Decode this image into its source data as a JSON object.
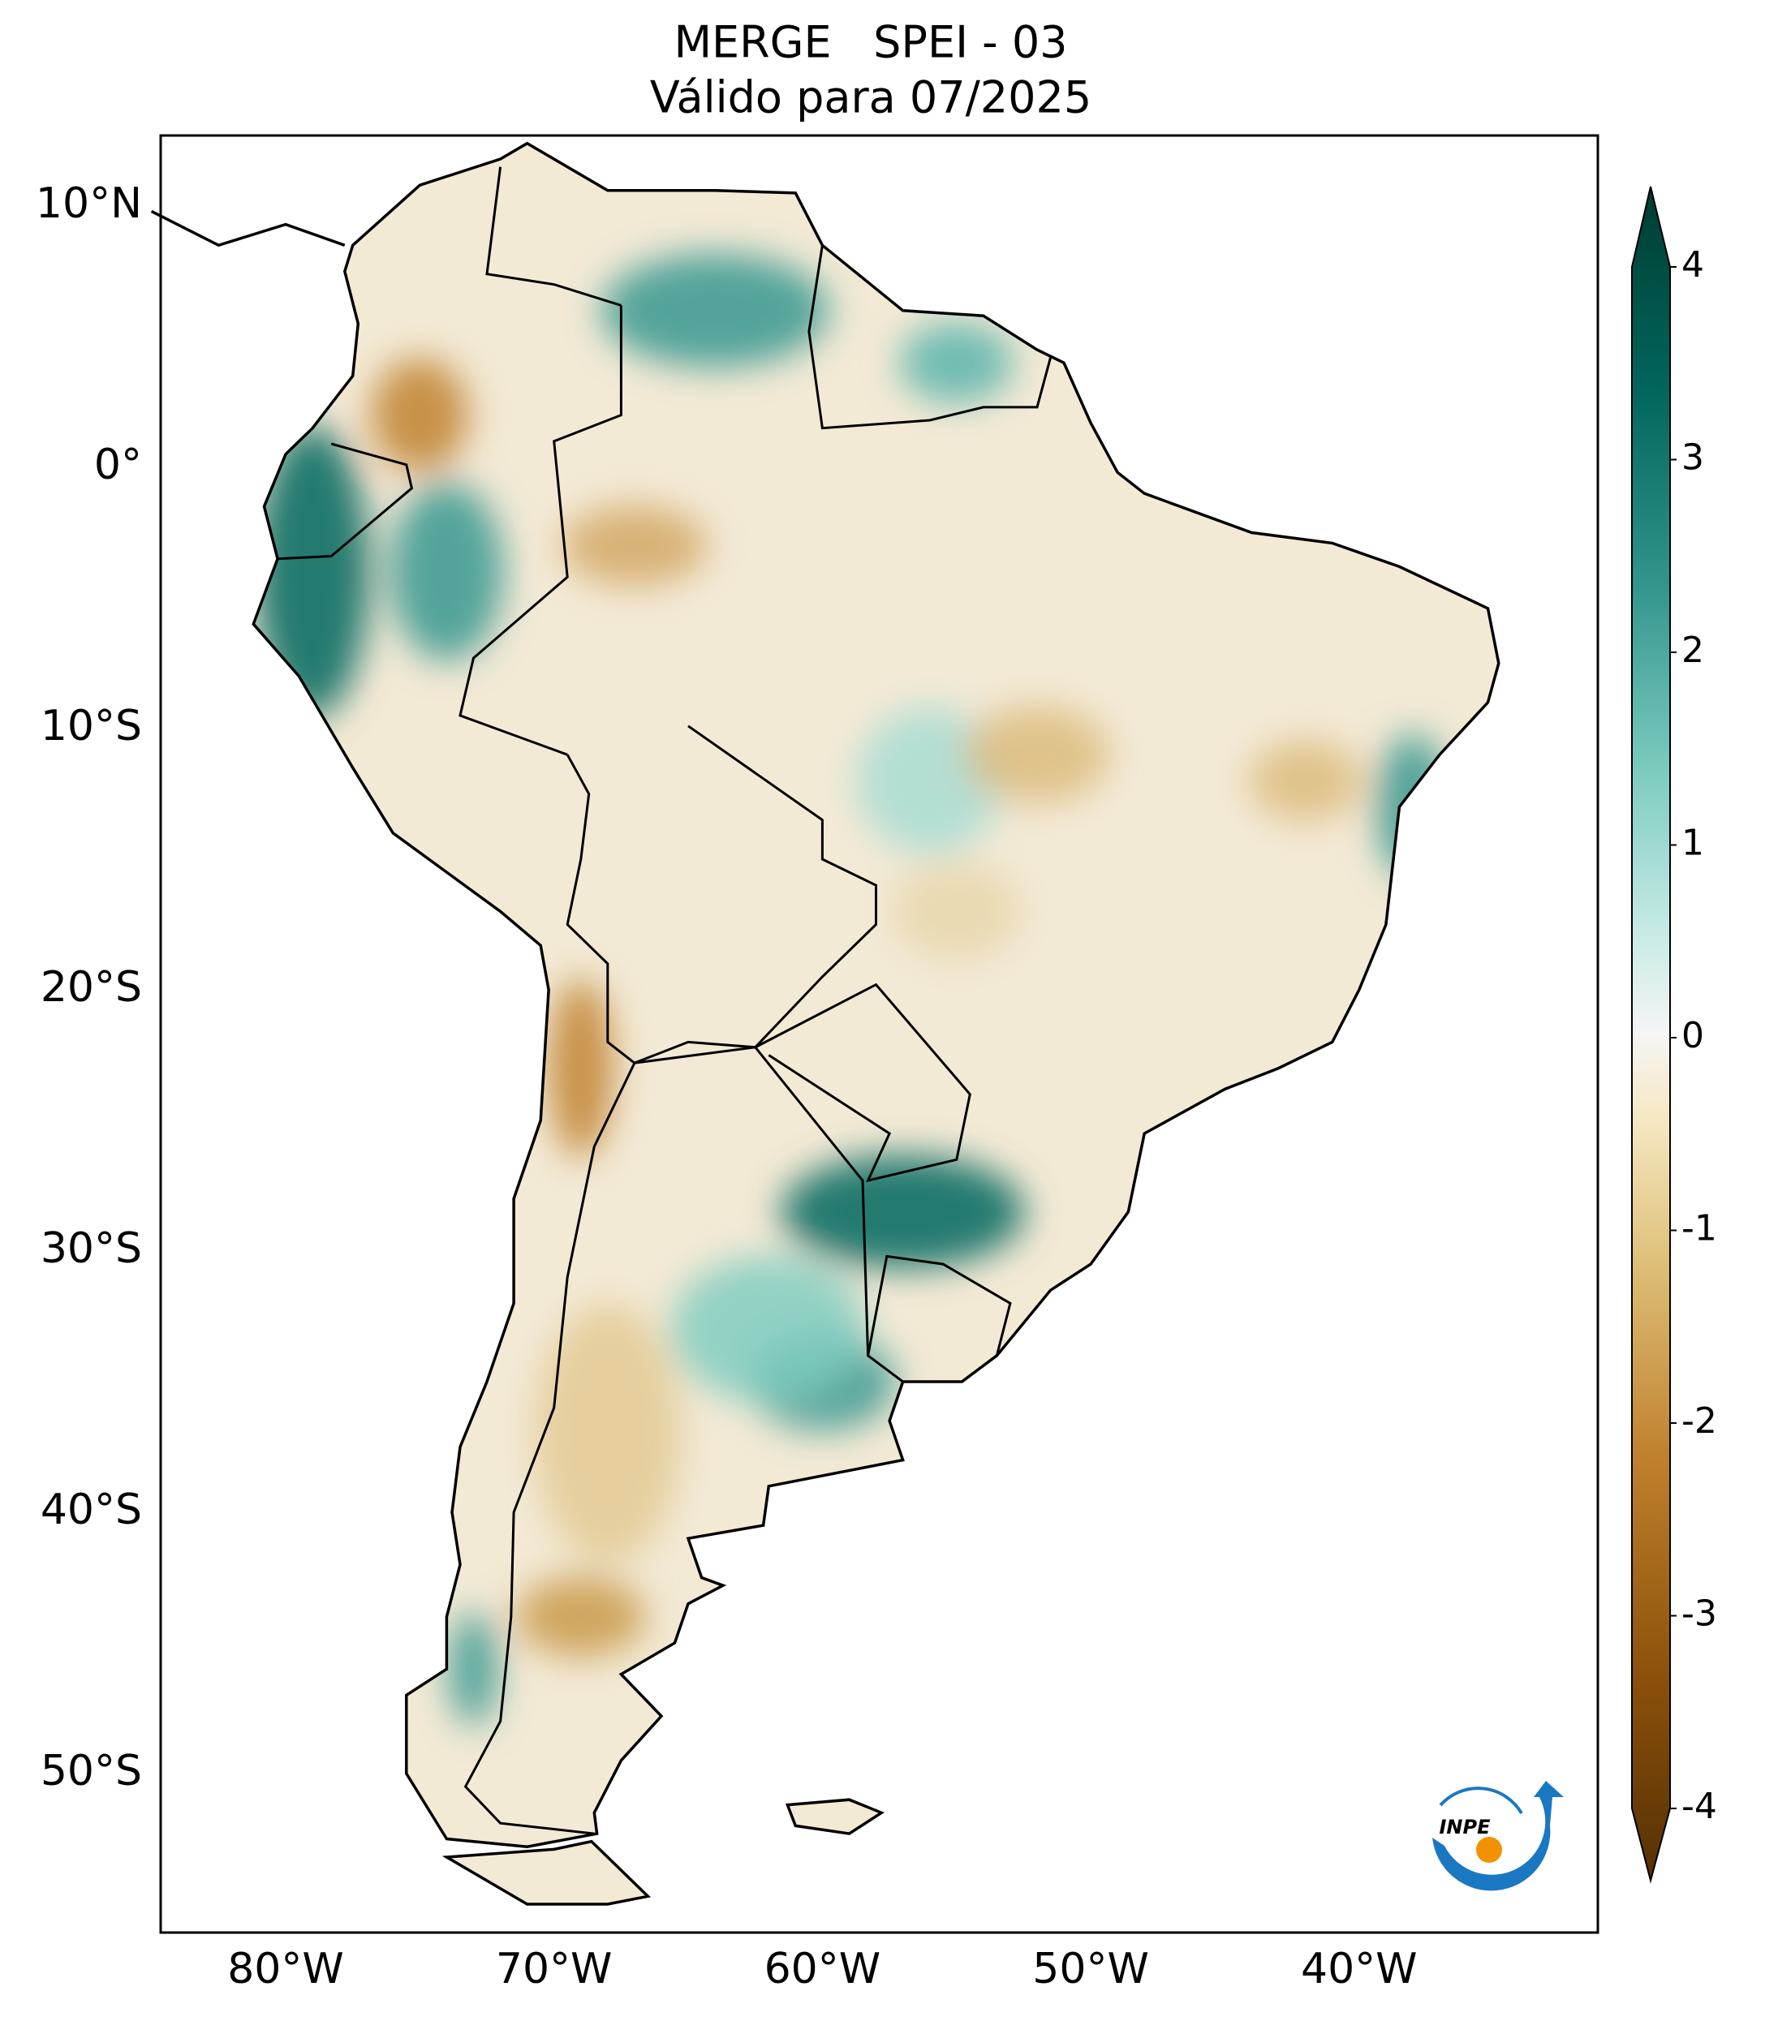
{
  "title": [
    "MERGE   SPEI - 03",
    "Válido para 07/2025"
  ],
  "map": {
    "lat_labels": [
      "10°N",
      "0°",
      "10°S",
      "20°S",
      "30°S",
      "40°S",
      "50°S"
    ],
    "lon_labels": [
      "80°W",
      "70°W",
      "60°W",
      "50°W",
      "40°W"
    ]
  },
  "colorbar": {
    "lim": [
      -4,
      4
    ],
    "ticks": [
      4,
      3,
      2,
      1,
      0,
      -1,
      -2,
      -3,
      -4
    ]
  },
  "logo": "INPE"
}
